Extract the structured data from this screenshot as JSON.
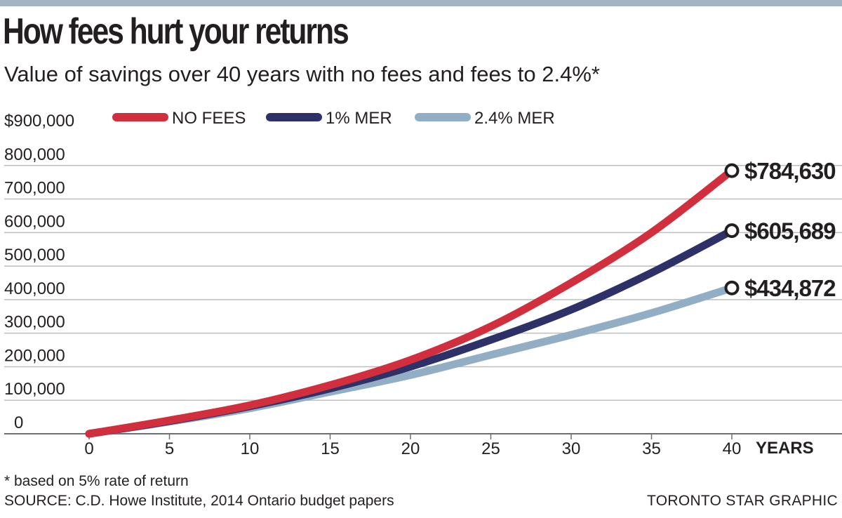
{
  "title": "How fees hurt your returns",
  "subtitle": "Value of savings over 40 years with no fees and fees to 2.4%*",
  "footnote": "* based on 5% rate of return",
  "source": "SOURCE: C.D. Howe Institute, 2014 Ontario budget papers",
  "credit": "TORONTO STAR GRAPHIC",
  "chart_data": {
    "type": "line",
    "title": "How fees hurt your returns",
    "subtitle": "Value of savings over 40 years with no fees and fees to 2.4%*",
    "xlabel": "YEARS",
    "ylabel": "",
    "x": [
      0,
      5,
      10,
      15,
      20,
      25,
      30,
      35,
      40
    ],
    "xlim": [
      0,
      40
    ],
    "ylim": [
      0,
      900000
    ],
    "x_ticks": [
      "0",
      "5",
      "10",
      "15",
      "20",
      "25",
      "30",
      "35",
      "40"
    ],
    "y_ticks": [
      {
        "value": 0,
        "label": "0"
      },
      {
        "value": 100000,
        "label": "100,000"
      },
      {
        "value": 200000,
        "label": "200,000"
      },
      {
        "value": 300000,
        "label": "300,000"
      },
      {
        "value": 400000,
        "label": "400,000"
      },
      {
        "value": 500000,
        "label": "500,000"
      },
      {
        "value": 600000,
        "label": "600,000"
      },
      {
        "value": 700000,
        "label": "700,000"
      },
      {
        "value": 800000,
        "label": "800,000"
      },
      {
        "value": 900000,
        "label": "$900,000"
      }
    ],
    "grid": true,
    "legend_position": "top",
    "series": [
      {
        "name": "NO FEES",
        "color": "#d12f3e",
        "values": [
          0,
          40000,
          85000,
          145000,
          220000,
          320000,
          450000,
          600000,
          784630
        ],
        "end_label": "$784,630"
      },
      {
        "name": "1% MER",
        "color": "#2e3168",
        "values": [
          0,
          38000,
          82000,
          135000,
          200000,
          280000,
          370000,
          480000,
          605689
        ],
        "end_label": "$605,689"
      },
      {
        "name": "2.4% MER",
        "color": "#91aec4",
        "values": [
          0,
          36000,
          76000,
          125000,
          175000,
          235000,
          295000,
          360000,
          434872
        ],
        "end_label": "$434,872"
      }
    ]
  }
}
